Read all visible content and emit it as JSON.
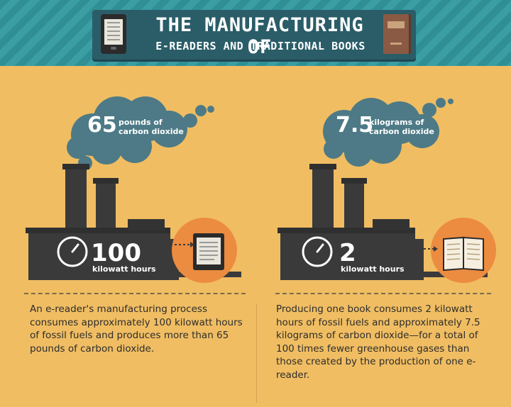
{
  "header": {
    "title": "THE MANUFACTURING OF",
    "subtitle": "E-READERS AND TRADITIONAL BOOKS",
    "left_icon": "ereader-icon",
    "right_icon": "book-icon"
  },
  "left": {
    "cloud_number": "65",
    "cloud_unit_line1": "pounds of",
    "cloud_unit_line2": "carbon dioxide",
    "factory_number": "100",
    "factory_unit": "kilowatt hours",
    "item_icon": "ereader-icon",
    "description": "An e-reader's manufacturing process consumes approximately 100 kilowatt hours of fossil fuels and produces more than 65 pounds of carbon dioxide."
  },
  "right": {
    "cloud_number": "7.5",
    "cloud_unit_line1": "kilograms of",
    "cloud_unit_line2": "carbon dioxide",
    "factory_number": "2",
    "factory_unit": "kilowatt hours",
    "item_icon": "open-book-icon",
    "description": "Producing one book consumes 2 kilowatt hours of fossil fuels and approximately 7.5 kilograms of carbon dioxide—for a total of 100 times fewer greenhouse gases than those created by the production of one e-reader."
  },
  "colors": {
    "background": "#f0bd62",
    "banner_teal": "#3a9ea3",
    "title_box": "#2a5d68",
    "factory": "#3a3a3a",
    "smoke": "#4d7a86",
    "accent_orange": "#ec8c40"
  }
}
